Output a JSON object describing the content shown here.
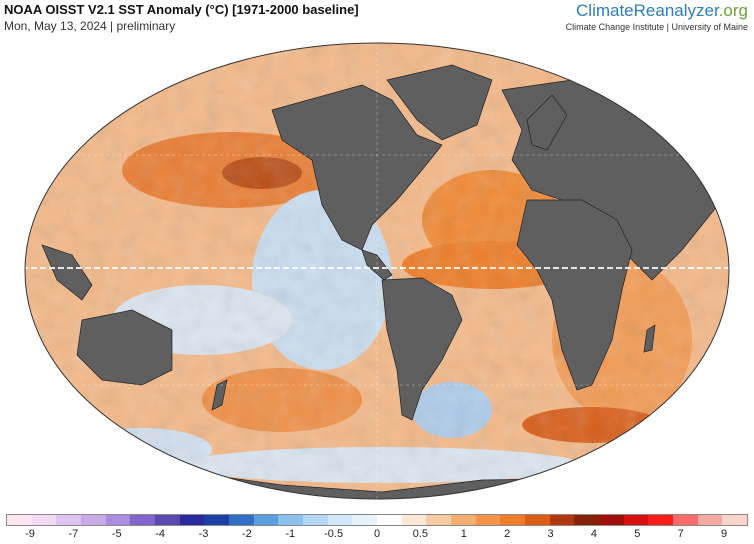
{
  "header": {
    "title": "NOAA OISST V2.1 SST Anomaly (°C) [1971-2000 baseline]",
    "subtitle": "Mon, May 13, 2024 | preliminary"
  },
  "brand": {
    "name_main": "ClimateReanalyzer",
    "name_suffix": ".org",
    "tagline": "Climate Change Institute | University of Maine"
  },
  "map": {
    "projection": "robinson-like oval world map",
    "land_color": "#5f5f5f",
    "ocean_warm_color": "#f08a3a",
    "ocean_neutral_color": "#fbe2cf",
    "ocean_cool_color": "#9cc6f0"
  },
  "colorbar": {
    "colors": [
      "#fde6f2",
      "#f1d9f2",
      "#dcc3ee",
      "#c8a9e8",
      "#a98ee0",
      "#8266cc",
      "#5a48ad",
      "#2a2a9a",
      "#1d3fa8",
      "#2f6ec4",
      "#5d9ee0",
      "#8cc0ef",
      "#b3d7f5",
      "#d1e7f8",
      "#e8f2fb",
      "#ffffff",
      "#fde8d6",
      "#f9cba3",
      "#f5ae70",
      "#f39448",
      "#f07c25",
      "#de5a17",
      "#b23710",
      "#86210a",
      "#a30e0e",
      "#d80f0f",
      "#fb1b1b",
      "#fa6a6a",
      "#f8a8a2",
      "#f8d6cc"
    ],
    "tick_labels": [
      "-9",
      "-7",
      "-5",
      "-4",
      "-3",
      "-2",
      "-1",
      "-0.5",
      "0",
      "0.5",
      "1",
      "2",
      "3",
      "4",
      "5",
      "7",
      "9"
    ]
  }
}
